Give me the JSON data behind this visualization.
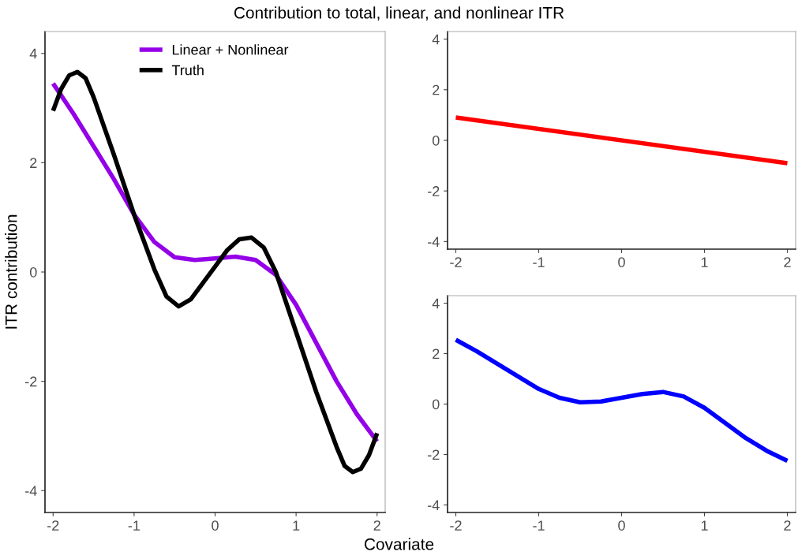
{
  "chart_data": [
    {
      "type": "line",
      "title": "Contribution to total, linear, and nonlinear ITR",
      "xlabel": "Covariate",
      "ylabel": "ITR contribution",
      "xlim": [
        -2.1,
        2.1
      ],
      "ylim": [
        -4.4,
        4.4
      ],
      "xticks": [
        -2,
        -1,
        0,
        1,
        2
      ],
      "yticks": [
        -4,
        -2,
        0,
        2,
        4
      ],
      "grid": false,
      "legend": "top",
      "series": [
        {
          "name": "Linear + Nonlinear",
          "color": "#9400e8",
          "x": [
            -2,
            -1.75,
            -1.5,
            -1.25,
            -1,
            -0.75,
            -0.5,
            -0.25,
            0,
            0.25,
            0.5,
            0.75,
            1,
            1.25,
            1.5,
            1.75,
            2
          ],
          "values": [
            3.45,
            2.9,
            2.3,
            1.7,
            1.05,
            0.55,
            0.27,
            0.22,
            0.25,
            0.28,
            0.22,
            -0.05,
            -0.6,
            -1.3,
            -2.0,
            -2.6,
            -3.1
          ]
        },
        {
          "name": "Truth",
          "color": "#000000",
          "x": [
            -2,
            -1.9,
            -1.8,
            -1.7,
            -1.6,
            -1.5,
            -1.25,
            -1,
            -0.75,
            -0.6,
            -0.45,
            -0.3,
            -0.15,
            0,
            0.15,
            0.3,
            0.45,
            0.6,
            0.75,
            1,
            1.25,
            1.5,
            1.6,
            1.7,
            1.8,
            1.9,
            2
          ],
          "values": [
            2.95,
            3.35,
            3.6,
            3.66,
            3.55,
            3.2,
            2.15,
            1.05,
            0.05,
            -0.45,
            -0.63,
            -0.5,
            -0.2,
            0.1,
            0.4,
            0.6,
            0.63,
            0.45,
            0.0,
            -1.1,
            -2.2,
            -3.2,
            -3.55,
            -3.66,
            -3.6,
            -3.35,
            -2.95
          ]
        }
      ]
    },
    {
      "type": "line",
      "xlim": [
        -2.1,
        2.1
      ],
      "ylim": [
        -4.3,
        4.3
      ],
      "xticks": [
        -2,
        -1,
        0,
        1,
        2
      ],
      "yticks": [
        -4,
        -2,
        0,
        2,
        4
      ],
      "grid": false,
      "legend": false,
      "series": [
        {
          "color": "#ff0000",
          "x": [
            -2,
            2
          ],
          "values": [
            0.9,
            -0.9
          ]
        }
      ]
    },
    {
      "type": "line",
      "xlim": [
        -2.1,
        2.1
      ],
      "ylim": [
        -4.3,
        4.3
      ],
      "xticks": [
        -2,
        -1,
        0,
        1,
        2
      ],
      "yticks": [
        -4,
        -2,
        0,
        2,
        4
      ],
      "grid": false,
      "legend": false,
      "series": [
        {
          "color": "#0000ff",
          "x": [
            -2,
            -1.75,
            -1.5,
            -1.25,
            -1,
            -0.75,
            -0.5,
            -0.25,
            0,
            0.25,
            0.5,
            0.75,
            1,
            1.25,
            1.5,
            1.75,
            2
          ],
          "values": [
            2.55,
            2.1,
            1.6,
            1.1,
            0.6,
            0.25,
            0.07,
            0.1,
            0.25,
            0.4,
            0.48,
            0.3,
            -0.15,
            -0.75,
            -1.35,
            -1.85,
            -2.25
          ]
        }
      ]
    }
  ]
}
